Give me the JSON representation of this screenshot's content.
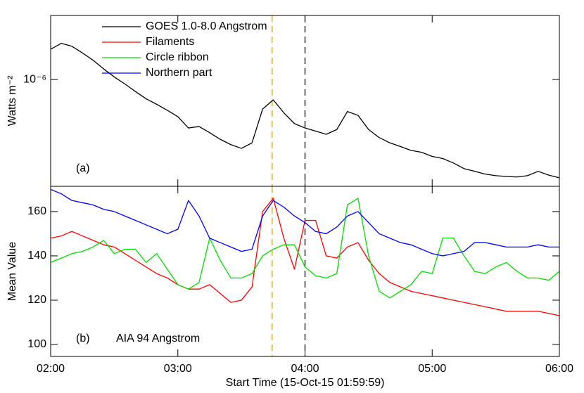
{
  "chart_data": [
    {
      "type": "line",
      "log": true,
      "ylabel": "Watts m⁻²",
      "annotations": [
        "(a)"
      ],
      "xlim": [
        0,
        240
      ],
      "xticks": [
        0,
        60,
        120,
        180,
        240
      ],
      "ylim": [
        2.9e-07,
        2.1e-06
      ],
      "yticks": [
        {
          "value": 1e-06,
          "label": "10⁻⁶"
        }
      ],
      "vlines": [
        {
          "x": 104.5,
          "color": "#d4a020"
        },
        {
          "x": 120,
          "color": "#000000"
        }
      ],
      "x": [
        0,
        5,
        10,
        15,
        20,
        25,
        30,
        35,
        40,
        45,
        50,
        55,
        60,
        65,
        70,
        75,
        80,
        85,
        90,
        95,
        100,
        105,
        110,
        115,
        120,
        125,
        130,
        135,
        140,
        145,
        150,
        155,
        160,
        165,
        170,
        175,
        180,
        185,
        190,
        195,
        200,
        205,
        210,
        215,
        220,
        225,
        230,
        235,
        240
      ],
      "series": [
        {
          "name": "GOES 1.0-8.0 Angstrom",
          "color": "#000000",
          "values": [
            1.42e-06,
            1.52e-06,
            1.47e-06,
            1.36e-06,
            1.25e-06,
            1.13e-06,
            1.03e-06,
            9.5e-07,
            8.7e-07,
            8e-07,
            7.5e-07,
            7e-07,
            6.5e-07,
            5.7e-07,
            5.8e-07,
            5.4e-07,
            5e-07,
            4.7e-07,
            4.5e-07,
            4.8e-07,
            7.1e-07,
            7.9e-07,
            6.8e-07,
            6e-07,
            5.7e-07,
            5.5e-07,
            5.3e-07,
            5.6e-07,
            6.9e-07,
            6.6e-07,
            5.6e-07,
            5.1e-07,
            4.8e-07,
            4.6e-07,
            4.4e-07,
            4.3e-07,
            4.1e-07,
            4e-07,
            3.8e-07,
            3.56e-07,
            3.45e-07,
            3.34e-07,
            3.28e-07,
            3.25e-07,
            3.23e-07,
            3.28e-07,
            3.45e-07,
            3.3e-07,
            3.2e-07
          ]
        }
      ]
    },
    {
      "type": "line",
      "ylabel": "Mean Value",
      "xlabel": "Start Time (15-Oct-15 01:59:59)",
      "annotations": [
        "(b)",
        "AIA 94 Angstrom"
      ],
      "xlim": [
        0,
        240
      ],
      "xticks": [
        {
          "value": 0,
          "label": "02:00"
        },
        {
          "value": 60,
          "label": "03:00"
        },
        {
          "value": 120,
          "label": "04:00"
        },
        {
          "value": 180,
          "label": "05:00"
        },
        {
          "value": 240,
          "label": "06:00"
        }
      ],
      "ylim": [
        94.6,
        171.4
      ],
      "yticks": [
        100,
        120,
        140,
        160
      ],
      "vlines": [
        {
          "x": 104.5,
          "color": "#d4a020"
        },
        {
          "x": 120,
          "color": "#000000"
        }
      ],
      "x": [
        0,
        5,
        10,
        15,
        20,
        25,
        30,
        35,
        40,
        45,
        50,
        55,
        60,
        65,
        70,
        75,
        80,
        85,
        90,
        95,
        100,
        105,
        110,
        115,
        120,
        125,
        130,
        135,
        140,
        145,
        150,
        155,
        160,
        165,
        170,
        175,
        180,
        185,
        190,
        195,
        200,
        205,
        210,
        215,
        220,
        225,
        230,
        235,
        240
      ],
      "series": [
        {
          "name": "Filaments",
          "color": "#ff0000",
          "values": [
            148,
            149,
            151,
            149,
            147,
            145,
            144,
            141,
            138,
            135,
            132,
            130,
            127,
            125,
            125,
            127,
            123,
            119,
            120,
            126,
            160,
            166,
            148,
            134,
            156,
            156,
            140,
            139,
            144,
            146,
            138,
            132,
            128,
            126,
            124,
            123,
            122,
            121,
            120,
            119,
            118,
            117,
            116,
            115,
            115,
            115,
            115,
            114,
            113
          ]
        },
        {
          "name": "Circle ribbon",
          "color": "#00dd00",
          "values": [
            137,
            139,
            141,
            142,
            144,
            147,
            141,
            143,
            143,
            137,
            141,
            134,
            127,
            125,
            128,
            148,
            138,
            130,
            130,
            132,
            140,
            143,
            145,
            145,
            135,
            131,
            130,
            132,
            163,
            166,
            140,
            124,
            121,
            124,
            127,
            133,
            132,
            148,
            148,
            140,
            133,
            132,
            135,
            137,
            133,
            130,
            130,
            129,
            133
          ]
        },
        {
          "name": "Northern part",
          "color": "#0000ff",
          "values": [
            170,
            168,
            165,
            164,
            163,
            161,
            160,
            158,
            156,
            154,
            152,
            150,
            152,
            165,
            158,
            148,
            146,
            144,
            142,
            143,
            158,
            165,
            162,
            158,
            155,
            151,
            150,
            153,
            158,
            160,
            155,
            150,
            148,
            146,
            145,
            143,
            141,
            140,
            141,
            142,
            146,
            146,
            145,
            144,
            144,
            144,
            145,
            144,
            144
          ]
        }
      ]
    }
  ]
}
